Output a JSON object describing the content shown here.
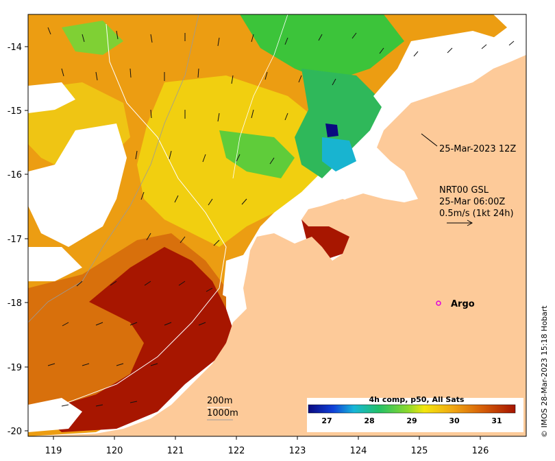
{
  "map": {
    "lon_ticks": [
      "119",
      "120",
      "121",
      "122",
      "123",
      "124",
      "125",
      "126"
    ],
    "lat_ticks": [
      "-14",
      "-15",
      "-16",
      "-17",
      "-18",
      "-19",
      "-20"
    ],
    "lon_range": [
      118.6,
      126.75
    ],
    "lat_range": [
      -20.1,
      -13.5
    ]
  },
  "annotations": {
    "timestamp_label": "25-Mar-2023 12Z",
    "current_title": "NRT00 GSL",
    "current_time": "25-Mar 06:00Z",
    "current_scale": "0.5m/s (1kt 24h)",
    "argo_label": "Argo",
    "isobath_200": "200m",
    "isobath_1000": "1000m",
    "credit": "© IMOS 28-Mar-2023 15:18 Hobart"
  },
  "colorbar": {
    "title": "4h comp, p50, All Sats",
    "ticks": [
      "27",
      "28",
      "29",
      "30",
      "31"
    ],
    "range": [
      26.6,
      31.5
    ]
  },
  "colors": {
    "land": "#fdca99",
    "hot": "#a51400",
    "warm": "#d76b09",
    "mid": "#eb9a10",
    "yellow": "#f3d80d",
    "green": "#35c83a",
    "cyan": "#16b6d8",
    "argo": "#dd00dd"
  }
}
